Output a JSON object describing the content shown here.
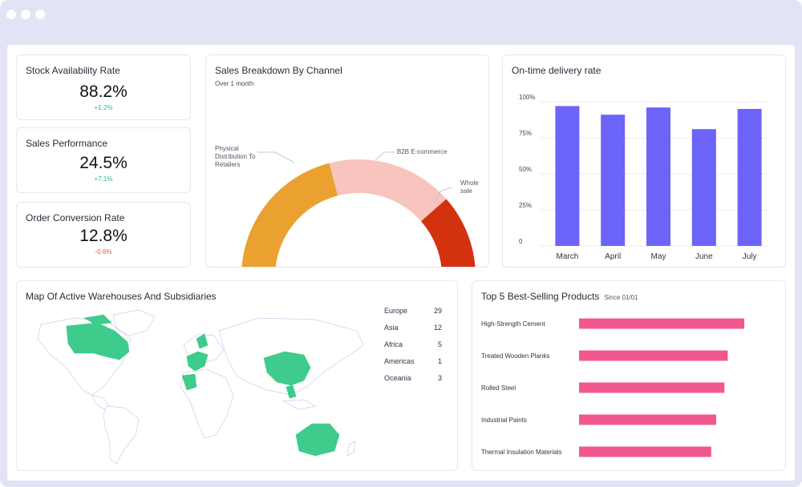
{
  "window": {
    "controls": [
      "window-dot-1",
      "window-dot-2",
      "window-dot-3"
    ]
  },
  "kpis": [
    {
      "title": "Stock Availability Rate",
      "value": "88.2%",
      "delta": "+1.2%",
      "trend": "up"
    },
    {
      "title": "Sales Performance",
      "value": "24.5%",
      "delta": "+7.1%",
      "trend": "up"
    },
    {
      "title": "Order Conversion Rate",
      "value": "12.8%",
      "delta": "-0.6%",
      "trend": "down"
    }
  ],
  "sales_breakdown": {
    "title": "Sales Breakdown By Channel",
    "subtitle": "Over 1 month",
    "labels": {
      "physical_1": "Physical",
      "physical_2": "Distribution To",
      "physical_3": "Retailers",
      "b2b": "B2B E-commerce",
      "whole_1": "Whole",
      "whole_2": "sale"
    },
    "colors": {
      "physical": "#eba12f",
      "b2b": "#f7c5be",
      "wholesale": "#d4310e"
    }
  },
  "chart_data": [
    {
      "type": "pie",
      "title": "Sales Breakdown By Channel",
      "subtitle": "Over 1 month",
      "style": "semi-donut",
      "categories": [
        "Physical Distribution To Retailers",
        "B2B E-commerce",
        "Whole sale"
      ],
      "values": [
        42,
        35,
        23
      ],
      "colors": [
        "#eba12f",
        "#f7c5be",
        "#d4310e"
      ]
    },
    {
      "type": "bar",
      "title": "On-time delivery rate",
      "categories": [
        "March",
        "April",
        "May",
        "June",
        "July"
      ],
      "values": [
        97,
        91,
        96,
        81,
        95
      ],
      "ylim": [
        0,
        100
      ],
      "yticks": [
        "0",
        "25%",
        "50%",
        "75%",
        "100%"
      ],
      "grid": true,
      "color": "#6c63f9"
    },
    {
      "type": "bar",
      "orientation": "horizontal",
      "title": "Top 5 Best-Selling Products",
      "subtitle": "Since 01/01",
      "categories": [
        "High-Strength Cement",
        "Treated Wooden Planks",
        "Rolled Steel",
        "Industrial Paints",
        "Thermal Insulation Materials"
      ],
      "values": [
        100,
        90,
        88,
        83,
        80
      ],
      "color": "#f0588f"
    }
  ],
  "delivery": {
    "title": "On-time delivery rate",
    "yticks": [
      "0",
      "25%",
      "50%",
      "75%",
      "100%"
    ]
  },
  "map": {
    "title": "Map Of Active Warehouses And Subsidiaries",
    "highlight_color": "#3ecb8c",
    "regions": [
      {
        "name": "Europe",
        "count": "29"
      },
      {
        "name": "Asia",
        "count": "12"
      },
      {
        "name": "Africa",
        "count": "5"
      },
      {
        "name": "Americas",
        "count": "1"
      },
      {
        "name": "Oceania",
        "count": "3"
      }
    ]
  },
  "top_products": {
    "title": "Top 5 Best-Selling Products",
    "subtitle": "Since 01/01"
  }
}
